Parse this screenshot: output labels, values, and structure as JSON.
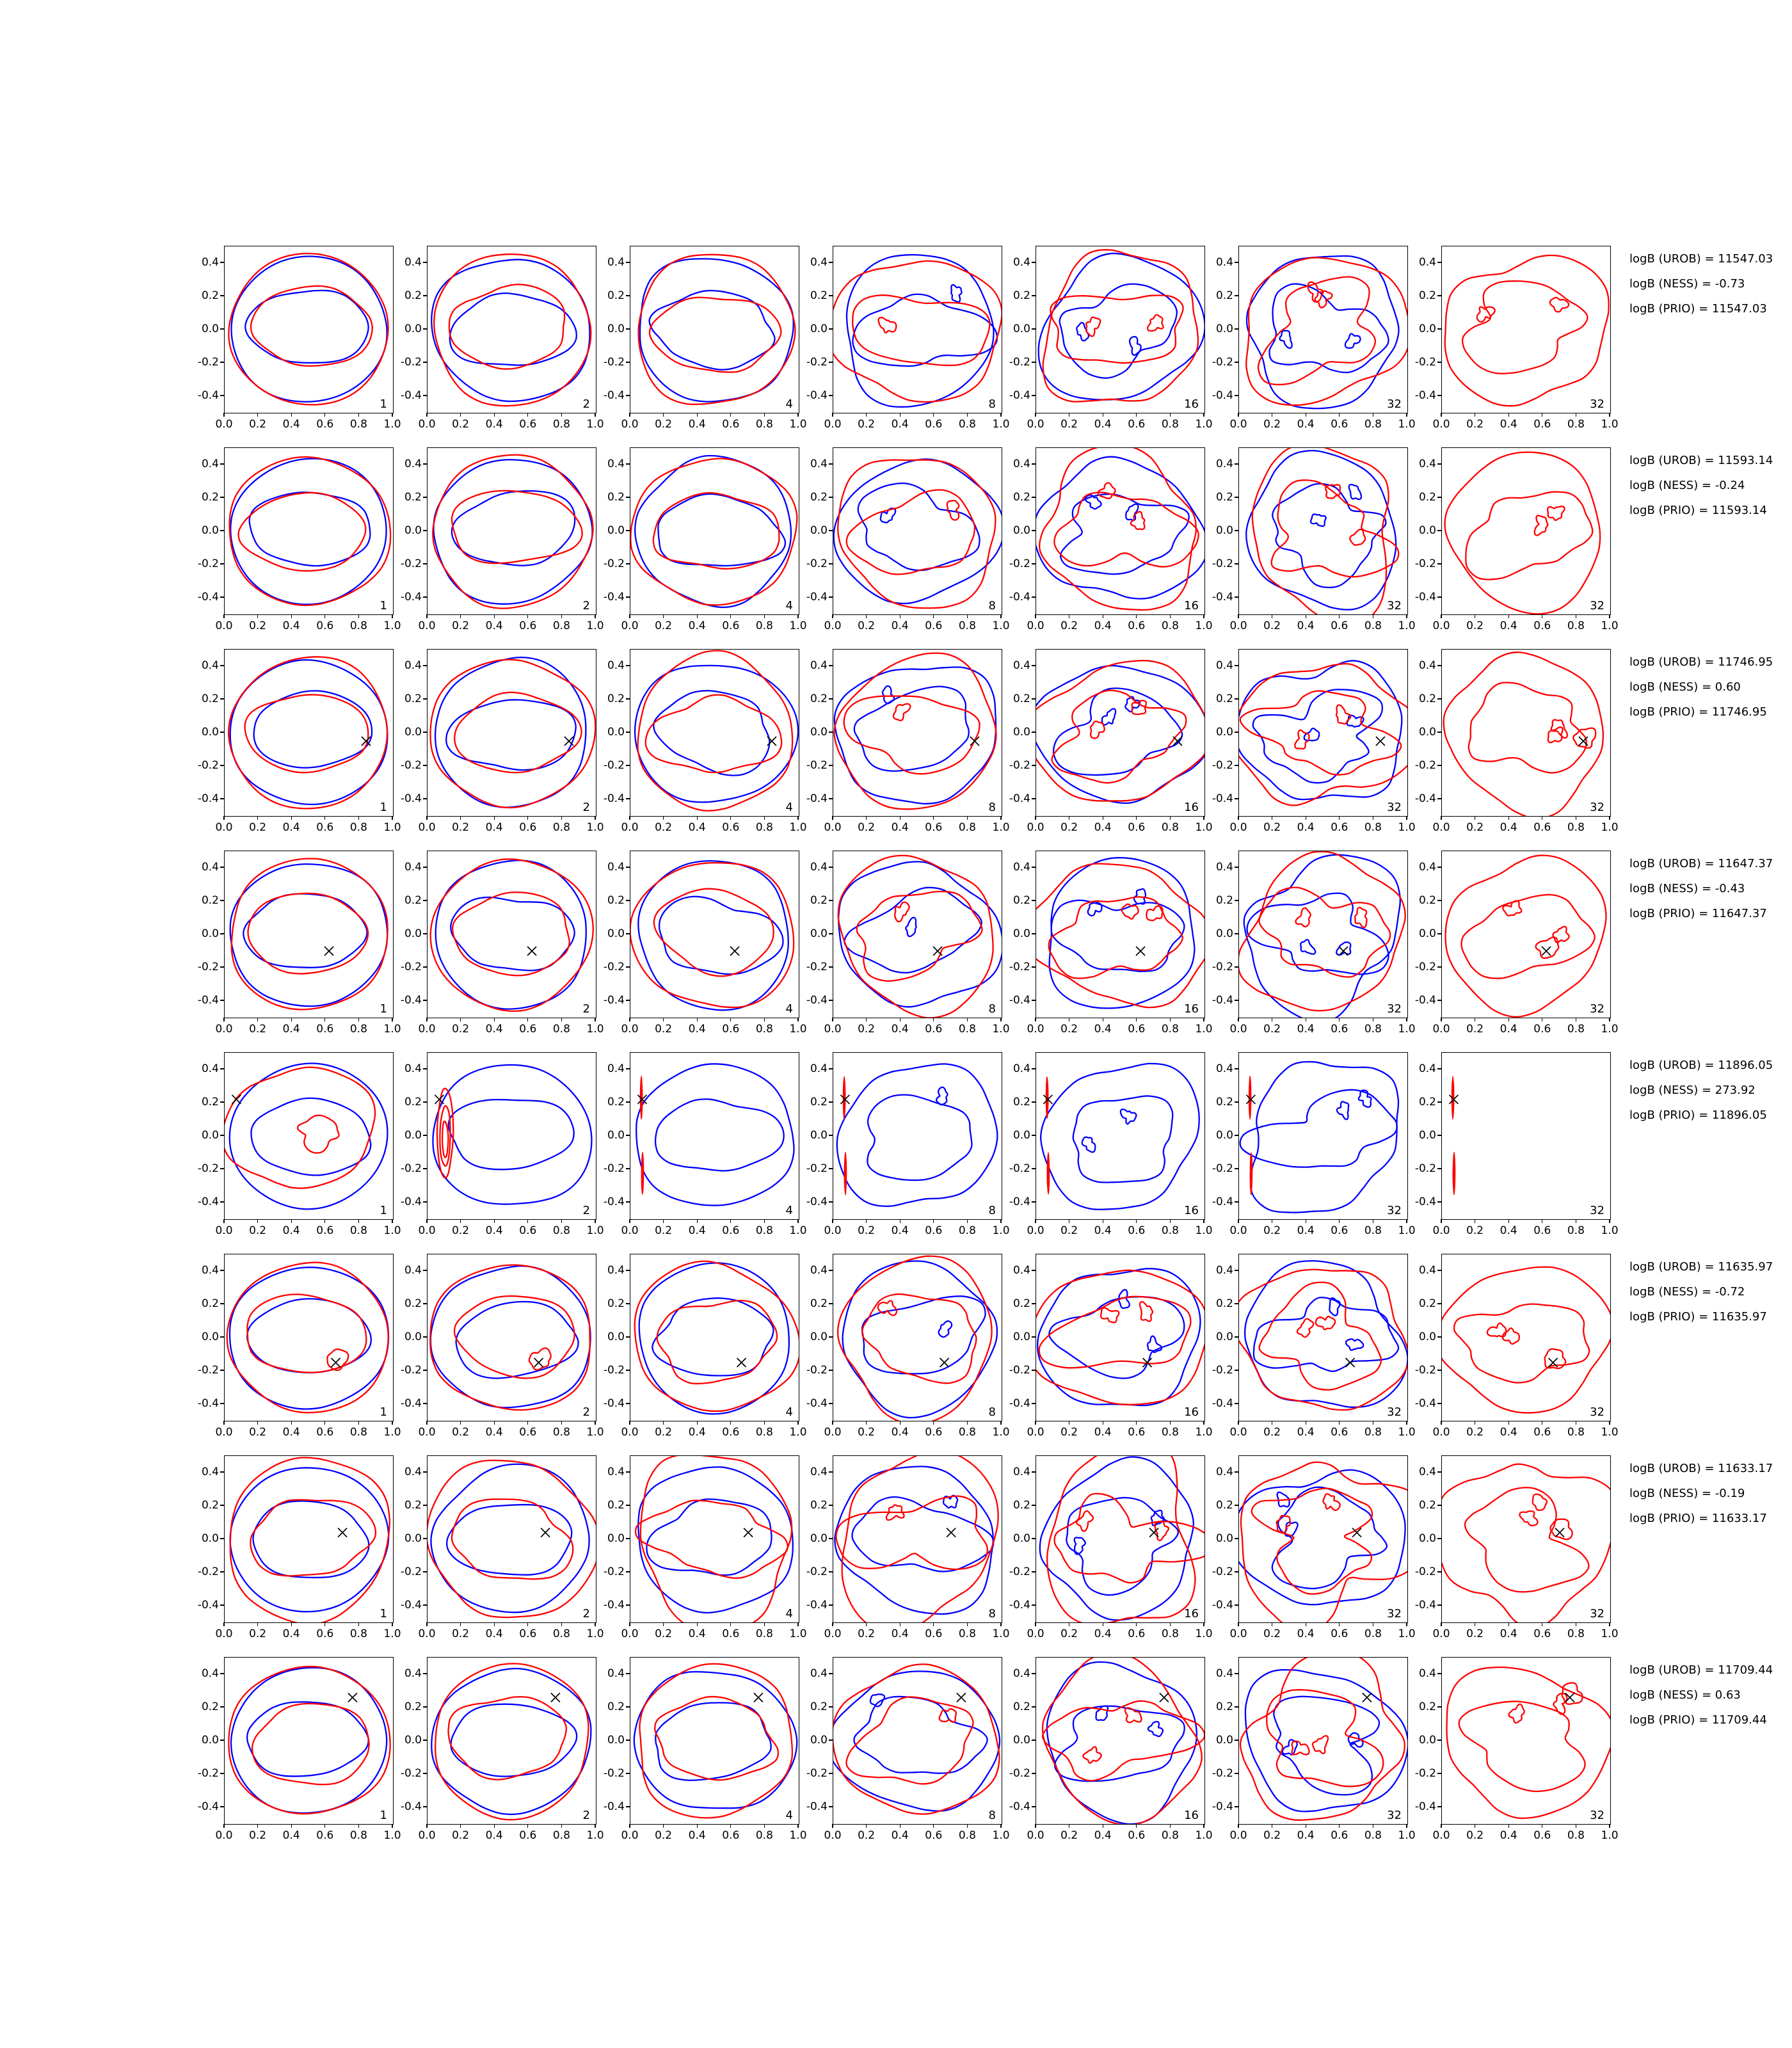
{
  "chart_data": {
    "type": "contour-grid",
    "description": "8x7 grid of 2D density contour plots (red and blue contour lines) with per-row logB annotations",
    "grid": {
      "rows": 8,
      "cols": 7
    },
    "x_ticks": [
      "0.0",
      "0.2",
      "0.4",
      "0.6",
      "0.8",
      "1.0"
    ],
    "y_ticks": [
      "0.4",
      "0.2",
      "0.0",
      "-0.2",
      "-0.4"
    ],
    "x_tick_values": [
      0.0,
      0.2,
      0.4,
      0.6,
      0.8,
      1.0
    ],
    "y_tick_values": [
      0.4,
      0.2,
      0.0,
      -0.2,
      -0.4
    ],
    "x_range": [
      0.0,
      1.0
    ],
    "y_range": [
      -0.5,
      0.5
    ],
    "grid_lines": false,
    "column_labels": [
      "1",
      "2",
      "4",
      "8",
      "16",
      "32",
      "32"
    ],
    "last_column_red_only": true,
    "colors": {
      "red_contour": "#ff0000",
      "blue_contour": "#0000ff",
      "marker": "#000000",
      "spine": "#000000",
      "background": "#ffffff"
    },
    "rows": [
      {
        "index": 1,
        "logB": {
          "UROB": 11547.03,
          "NESS": -0.73,
          "PRIO": 11547.03
        },
        "annotations": [
          "logB (UROB) = 11547.03",
          "logB (NESS) = -0.73",
          "logB (PRIO) = 11547.03"
        ],
        "marker": null,
        "red_degenerate": false
      },
      {
        "index": 2,
        "logB": {
          "UROB": 11593.14,
          "NESS": -0.24,
          "PRIO": 11593.14
        },
        "annotations": [
          "logB (UROB) = 11593.14",
          "logB (NESS) = -0.24",
          "logB (PRIO) = 11593.14"
        ],
        "marker": null,
        "red_degenerate": false
      },
      {
        "index": 3,
        "logB": {
          "UROB": 11746.95,
          "NESS": 0.6,
          "PRIO": 11746.95
        },
        "annotations": [
          "logB (UROB) = 11746.95",
          "logB (NESS) = 0.60",
          "logB (PRIO) = 11746.95"
        ],
        "marker": [
          0.84,
          -0.05
        ],
        "red_degenerate": false
      },
      {
        "index": 4,
        "logB": {
          "UROB": 11647.37,
          "NESS": -0.43,
          "PRIO": 11647.37
        },
        "annotations": [
          "logB (UROB) = 11647.37",
          "logB (NESS) = -0.43",
          "logB (PRIO) = 11647.37"
        ],
        "marker": [
          0.62,
          -0.1
        ],
        "red_degenerate": false
      },
      {
        "index": 5,
        "logB": {
          "UROB": 11896.05,
          "NESS": 273.92,
          "PRIO": 11896.05
        },
        "annotations": [
          "logB (UROB) = 11896.05",
          "logB (NESS) = 273.92",
          "logB (PRIO) = 11896.05"
        ],
        "marker": [
          0.07,
          0.22
        ],
        "red_degenerate": true
      },
      {
        "index": 6,
        "logB": {
          "UROB": 11635.97,
          "NESS": -0.72,
          "PRIO": 11635.97
        },
        "annotations": [
          "logB (UROB) = 11635.97",
          "logB (NESS) = -0.72",
          "logB (PRIO) = 11635.97"
        ],
        "marker": [
          0.66,
          -0.15
        ],
        "red_degenerate": false
      },
      {
        "index": 7,
        "logB": {
          "UROB": 11633.17,
          "NESS": -0.19,
          "PRIO": 11633.17
        },
        "annotations": [
          "logB (UROB) = 11633.17",
          "logB (NESS) = -0.19",
          "logB (PRIO) = 11633.17"
        ],
        "marker": [
          0.7,
          0.04
        ],
        "red_degenerate": false
      },
      {
        "index": 8,
        "logB": {
          "UROB": 11709.44,
          "NESS": 0.63,
          "PRIO": 11709.44
        },
        "annotations": [
          "logB (UROB) = 11709.44",
          "logB (NESS) = 0.63",
          "logB (PRIO) = 11709.44"
        ],
        "marker": [
          0.76,
          0.26
        ],
        "red_degenerate": false
      }
    ]
  }
}
